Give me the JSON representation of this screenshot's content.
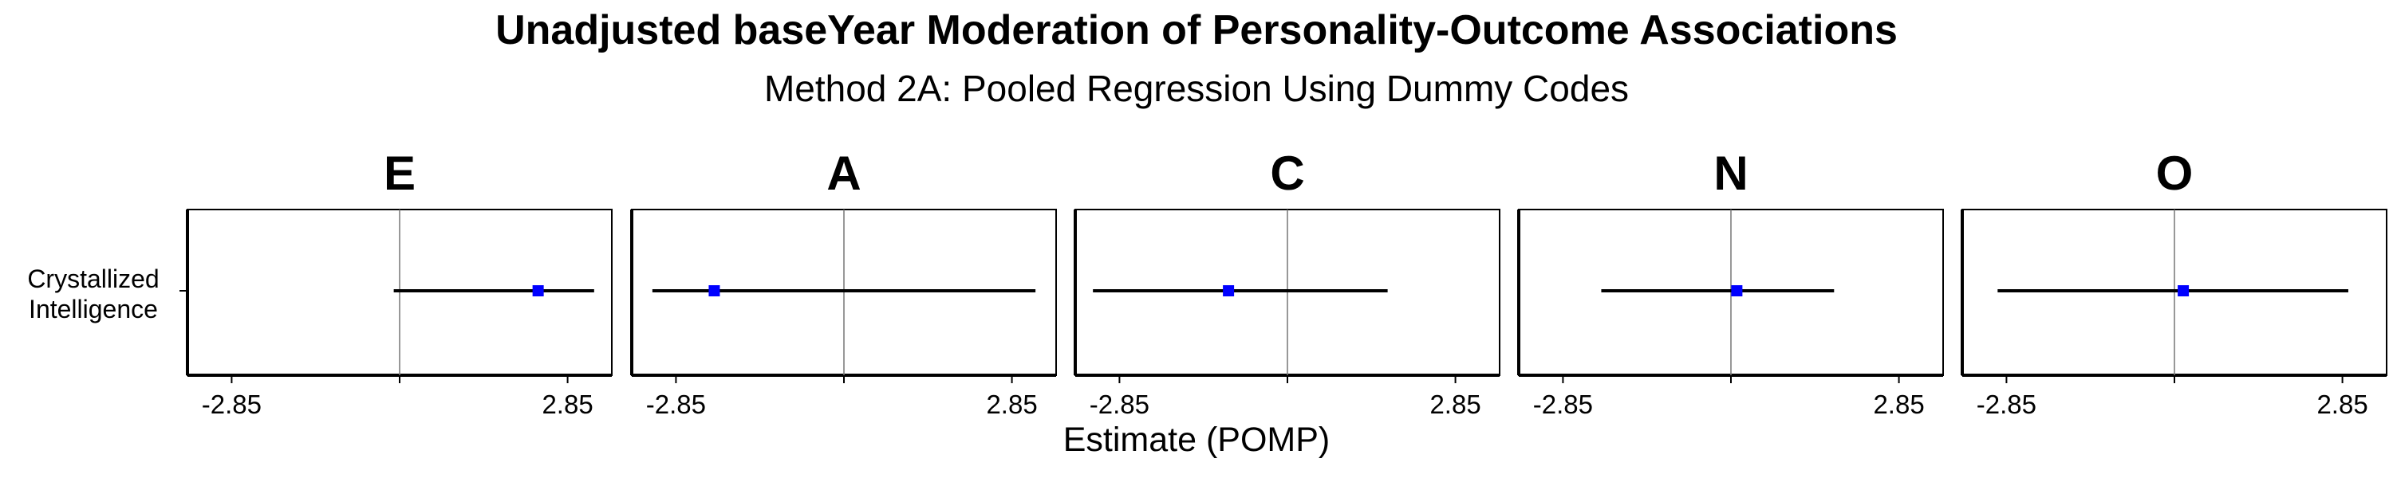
{
  "chart_data": {
    "type": "forest",
    "title": "Unadjusted baseYear Moderation of Personality-Outcome Associations",
    "subtitle": "Method 2A: Pooled Regression Using Dummy Codes",
    "xlabel": "Estimate (POMP)",
    "row_label_lines": [
      "Crystallized",
      "Intelligence"
    ],
    "xlim": [
      -3.6,
      3.6
    ],
    "x_ticks": [
      -2.85,
      0,
      2.85
    ],
    "x_tick_labels": [
      "-2.85",
      "",
      "2.85"
    ],
    "reference_line": 0,
    "point_color": "#0000ff",
    "facets": [
      {
        "label": "E",
        "estimate": 2.35,
        "ci_low": -0.1,
        "ci_high": 3.3
      },
      {
        "label": "A",
        "estimate": -2.2,
        "ci_low": -3.25,
        "ci_high": 3.25
      },
      {
        "label": "C",
        "estimate": -1.0,
        "ci_low": -3.3,
        "ci_high": 1.7
      },
      {
        "label": "N",
        "estimate": 0.1,
        "ci_low": -2.2,
        "ci_high": 1.75
      },
      {
        "label": "O",
        "estimate": 0.15,
        "ci_low": -3.0,
        "ci_high": 2.95
      }
    ]
  }
}
